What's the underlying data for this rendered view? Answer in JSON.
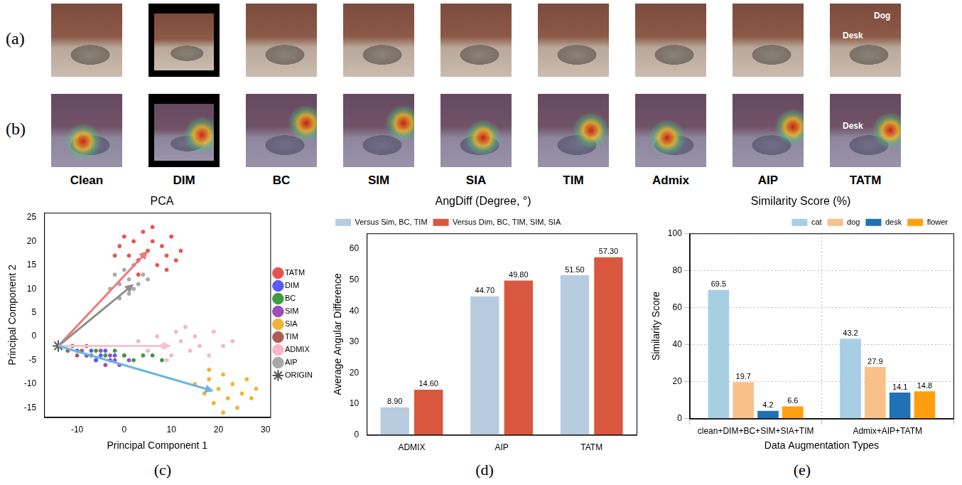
{
  "image_rows": {
    "row_labels": [
      "(a)",
      "(b)"
    ],
    "columns": [
      "Clean",
      "DIM",
      "BC",
      "SIM",
      "SIA",
      "TIM",
      "Admix",
      "AIP",
      "TATM"
    ],
    "overlays": [
      {
        "column": "TATM",
        "row": "(a)",
        "texts": [
          "Dog",
          "Desk"
        ]
      },
      {
        "column": "TATM",
        "row": "(b)",
        "texts": [
          "Desk"
        ]
      }
    ]
  },
  "chart_data": [
    {
      "panel": "(c)",
      "type": "scatter",
      "title": "PCA",
      "x_label": "Principal Component 1",
      "y_label": "Principal Component 2",
      "xlim": [
        -17,
        31
      ],
      "xticks": [
        -10,
        0,
        10,
        20,
        30
      ],
      "ylim": [
        -17,
        26
      ],
      "yticks": [
        -15,
        -10,
        -5,
        0,
        5,
        10,
        15,
        20,
        25
      ],
      "grid": false,
      "legend": "right",
      "series": [
        {
          "name": "TATM",
          "color": "#e8534f",
          "marker": "circle",
          "x": [
            -1,
            0,
            1,
            2,
            3,
            4,
            5,
            6,
            7,
            8,
            9,
            10,
            11,
            12,
            3,
            6,
            -2,
            9
          ],
          "values": [
            19,
            21,
            17,
            20,
            16,
            22,
            18,
            20,
            15,
            19,
            17,
            21,
            16,
            18,
            13,
            23,
            17,
            14
          ]
        },
        {
          "name": "DIM",
          "color": "#5b5bf0",
          "marker": "circle",
          "x": [
            -10,
            -8,
            -7,
            -6,
            -5,
            -4,
            -3,
            -2
          ],
          "values": [
            -3,
            -4,
            -3,
            -5,
            -4,
            -3,
            -5,
            -4
          ]
        },
        {
          "name": "BC",
          "color": "#3f9c3f",
          "marker": "circle",
          "x": [
            -6,
            -4,
            -2,
            0,
            2,
            4,
            6,
            8
          ],
          "values": [
            -3,
            -4,
            -3,
            -4,
            -5,
            -4,
            -4,
            -5
          ]
        },
        {
          "name": "SIM",
          "color": "#9b4fb8",
          "marker": "circle",
          "x": [
            -8,
            -6,
            -5,
            -4,
            -3,
            -2,
            -1,
            0,
            1
          ],
          "values": [
            -4,
            -5,
            -3,
            -6,
            -4,
            -5,
            -6,
            -4,
            -5
          ]
        },
        {
          "name": "SIA",
          "color": "#f2b235",
          "marker": "circle",
          "x": [
            15,
            17,
            18,
            19,
            20,
            21,
            22,
            23,
            24,
            25,
            26,
            27,
            28,
            21,
            18
          ],
          "values": [
            -10,
            -12,
            -9,
            -14,
            -11,
            -8,
            -13,
            -10,
            -15,
            -12,
            -9,
            -13,
            -11,
            -16,
            -7
          ]
        },
        {
          "name": "TIM",
          "color": "#b05c52",
          "marker": "circle",
          "x": [
            -12,
            -11,
            -10,
            -9,
            -8,
            -7
          ],
          "values": [
            -3,
            -2,
            -4,
            -3,
            -2,
            -4
          ]
        },
        {
          "name": "ADMIX",
          "color": "#f7b6c8",
          "marker": "circle",
          "x": [
            3,
            5,
            7,
            8,
            10,
            11,
            12,
            14,
            15,
            16,
            18,
            19,
            21,
            23,
            9,
            13
          ],
          "values": [
            -1,
            -3,
            0,
            -2,
            -4,
            1,
            -1,
            -3,
            0,
            -2,
            -4,
            1,
            -2,
            -1,
            -5,
            2
          ]
        },
        {
          "name": "AIP",
          "color": "#a9a9a9",
          "marker": "circle",
          "x": [
            -3,
            -2,
            -1,
            0,
            1,
            1,
            2,
            3,
            4,
            5,
            -1,
            2
          ],
          "values": [
            10,
            13,
            11,
            14,
            9,
            12,
            15,
            11,
            13,
            12,
            8,
            10
          ]
        },
        {
          "name": "ORIGIN",
          "color": "#555555",
          "marker": "star",
          "x": [
            -14
          ],
          "values": [
            -2
          ]
        }
      ],
      "arrows": [
        {
          "from": [
            -14,
            -2
          ],
          "to": [
            5,
            18
          ],
          "color": "#f07878"
        },
        {
          "from": [
            -14,
            -2
          ],
          "to": [
            2,
            11
          ],
          "color": "#909090"
        },
        {
          "from": [
            -14,
            -2
          ],
          "to": [
            10,
            -2
          ],
          "color": "#f6c4d0"
        },
        {
          "from": [
            -14,
            -2
          ],
          "to": [
            19,
            -11.5
          ],
          "color": "#6ab4e6"
        }
      ]
    },
    {
      "panel": "(d)",
      "type": "bar",
      "title": "AngDiff (Degree, °)",
      "y_label": "Average Angular Difference",
      "categories": [
        "ADMIX",
        "AIP",
        "TATM"
      ],
      "ylim": [
        0,
        65
      ],
      "yticks": [
        0,
        10,
        20,
        30,
        40,
        50,
        60
      ],
      "grid": false,
      "legend": "top",
      "data_labels": true,
      "series": [
        {
          "name": "Versus Sim, BC, TIM",
          "color": "#b8cce0",
          "values": [
            8.9,
            44.7,
            51.5
          ],
          "value_labels": [
            "8.90",
            "44.70",
            "51.50"
          ]
        },
        {
          "name": "Versus Dim, BC, TIM, SIM, SIA",
          "color": "#d9573e",
          "values": [
            14.6,
            49.8,
            57.3
          ],
          "value_labels": [
            "14.60",
            "49.80",
            "57.30"
          ]
        }
      ]
    },
    {
      "panel": "(e)",
      "type": "bar",
      "title": "Similarity Score (%)",
      "x_label": "Data Augmentation Types",
      "y_label": "Similarity Score",
      "categories": [
        "clean+DIM+BC+SIM+SIA+TIM",
        "Admix+AIP+TATM"
      ],
      "ylim": [
        0,
        100
      ],
      "yticks": [
        0,
        20,
        40,
        60,
        80,
        100
      ],
      "grid": true,
      "legend": "top",
      "data_labels": true,
      "series": [
        {
          "name": "cat",
          "color": "#a6cfe3",
          "values": [
            69.5,
            43.2
          ]
        },
        {
          "name": "dog",
          "color": "#f9c08a",
          "values": [
            19.7,
            27.9
          ]
        },
        {
          "name": "desk",
          "color": "#2171b5",
          "values": [
            4.2,
            14.1
          ]
        },
        {
          "name": "flower",
          "color": "#ff9f0f",
          "values": [
            6.6,
            14.8
          ]
        }
      ]
    }
  ]
}
